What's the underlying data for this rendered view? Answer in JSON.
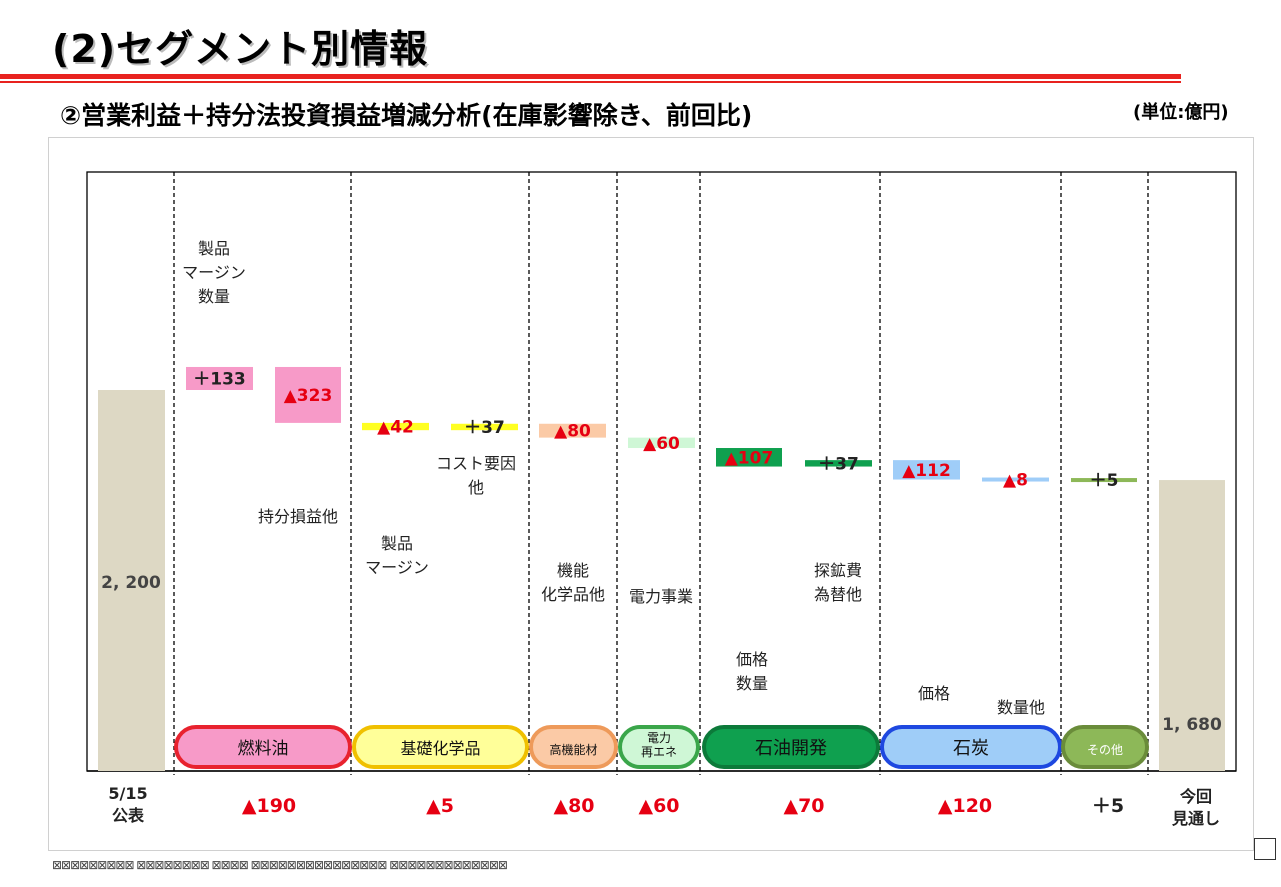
{
  "header": {
    "title": "(2)セグメント別情報",
    "subtitle": "②営業利益＋持分法投資損益増減分析(在庫影響除き、前回比)",
    "unit": "(単位:億円)"
  },
  "colors": {
    "fuel_oil": "#f79ac8",
    "fuel_oil_border": "#e8222e",
    "basic_chem": "#ffff22",
    "basic_chem_pill": "#ffff99",
    "basic_chem_border": "#f0c000",
    "hp_materials": "#fbcaa6",
    "hp_materials_border": "#ee9a5a",
    "power": "#cff7d6",
    "power_border": "#3aa64a",
    "oil_dev": "#0fa04f",
    "oil_dev_border": "#0c7a3a",
    "coal": "#9fcdf8",
    "coal_border": "#1e48e0",
    "other": "#8db858",
    "other_border": "#6a8c3a",
    "total": "#ddd8c4",
    "negative_text": "#e60012",
    "title_rule": "#e8221f"
  },
  "chart_data": {
    "type": "bar",
    "title": "②営業利益＋持分法投資損益増減分析(在庫影響除き、前回比)",
    "unit": "(単位:億円)",
    "start": {
      "value": 2200,
      "label": "2, 200",
      "xlabel": "5/15\n公表"
    },
    "end": {
      "value": 1680,
      "label": "1, 680",
      "xlabel": "今回\n見通し"
    },
    "segments": [
      {
        "name": "燃料油",
        "change": -190,
        "change_label": "▲190",
        "items": [
          {
            "name": "製品\nマージン\n数量",
            "delta": 133,
            "label": "+133"
          },
          {
            "name": "持分損益他",
            "delta": -323,
            "label": "▲323"
          }
        ]
      },
      {
        "name": "基礎化学品",
        "change": -5,
        "change_label": "▲5",
        "items": [
          {
            "name": "製品\nマージン",
            "delta": -42,
            "label": "▲42"
          },
          {
            "name": "コスト要因\n他",
            "delta": 37,
            "label": "+37"
          }
        ]
      },
      {
        "name": "高機能材",
        "change": -80,
        "change_label": "▲80",
        "items": [
          {
            "name": "機能\n化学品他",
            "delta": -80,
            "label": "▲80"
          }
        ]
      },
      {
        "name": "電力\n再エネ",
        "change": -60,
        "change_label": "▲60",
        "items": [
          {
            "name": "電力事業",
            "delta": -60,
            "label": "▲60"
          }
        ]
      },
      {
        "name": "石油開発",
        "change": -70,
        "change_label": "▲70",
        "items": [
          {
            "name": "価格\n数量",
            "delta": -107,
            "label": "▲107"
          },
          {
            "name": "探鉱費\n為替他",
            "delta": 37,
            "label": "+37"
          }
        ]
      },
      {
        "name": "石炭",
        "change": -120,
        "change_label": "▲120",
        "items": [
          {
            "name": "価格",
            "delta": -112,
            "label": "▲112"
          },
          {
            "name": "数量他",
            "delta": -8,
            "label": "▲8"
          }
        ]
      },
      {
        "name": "その他",
        "change": 5,
        "change_label": "+5",
        "items": [
          {
            "name": "",
            "delta": 5,
            "label": "+5"
          }
        ]
      }
    ]
  }
}
